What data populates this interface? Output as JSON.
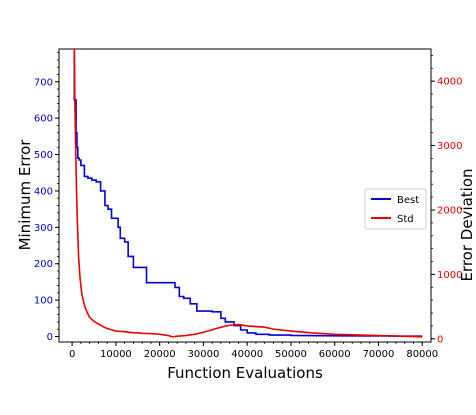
{
  "chart_data": {
    "type": "line",
    "title": "",
    "xlabel": "Function Evaluations",
    "ylabel_left": "Minimum Error",
    "ylabel_right": "Error Deviation",
    "xlim": [
      -3000,
      82000
    ],
    "ylim_left": [
      -15,
      790
    ],
    "ylim_right": [
      -50,
      4500
    ],
    "xticks": [
      0,
      10000,
      20000,
      30000,
      40000,
      50000,
      60000,
      70000,
      80000
    ],
    "xtick_labels": [
      "0",
      "10000",
      "20000",
      "30000",
      "40000",
      "50000",
      "60000",
      "70000",
      "80000"
    ],
    "yticks_left": [
      0,
      100,
      200,
      300,
      400,
      500,
      600,
      700
    ],
    "ytick_labels_left": [
      "0",
      "100",
      "200",
      "300",
      "400",
      "500",
      "600",
      "700"
    ],
    "yticks_right": [
      0,
      1000,
      2000,
      3000,
      4000
    ],
    "ytick_labels_right": [
      "0",
      "1000",
      "2000",
      "3000",
      "4000"
    ],
    "grid": false,
    "legend_position": "center-right",
    "colors": {
      "best": "#0000dd",
      "std": "#ee0000",
      "left_axis": "#0000cc",
      "right_axis": "#dd0000"
    },
    "series": [
      {
        "name": "Best",
        "axis": "left",
        "x": [
          500,
          500,
          900,
          900,
          1100,
          1100,
          1300,
          1300,
          1600,
          1600,
          2000,
          2000,
          2800,
          2800,
          3600,
          3600,
          4500,
          4500,
          5500,
          5500,
          6500,
          6500,
          7500,
          7500,
          8200,
          8200,
          9000,
          9000,
          10500,
          10500,
          11000,
          11000,
          12000,
          12000,
          12800,
          12800,
          14000,
          14000,
          17000,
          17000,
          23500,
          23500,
          24500,
          24500,
          25500,
          25500,
          27000,
          27000,
          28500,
          28500,
          32000,
          32000,
          34000,
          34000,
          35000,
          35000,
          37000,
          37000,
          38500,
          38500,
          40000,
          40000,
          42000,
          42000,
          45000,
          45000,
          50000,
          50000,
          60000,
          80000
        ],
        "y": [
          790,
          650,
          650,
          560,
          560,
          520,
          520,
          490,
          490,
          485,
          485,
          470,
          470,
          440,
          440,
          435,
          435,
          430,
          430,
          425,
          425,
          400,
          400,
          360,
          360,
          350,
          350,
          325,
          325,
          300,
          300,
          270,
          270,
          260,
          260,
          220,
          220,
          190,
          190,
          148,
          148,
          135,
          135,
          110,
          110,
          105,
          105,
          90,
          90,
          70,
          70,
          68,
          68,
          50,
          50,
          40,
          40,
          30,
          30,
          18,
          18,
          10,
          10,
          6,
          6,
          4,
          4,
          3,
          2,
          1
        ]
      },
      {
        "name": "Std",
        "axis": "right",
        "x": [
          500,
          600,
          800,
          1000,
          1200,
          1500,
          1800,
          2200,
          2600,
          3000,
          3500,
          4000,
          4500,
          5000,
          6000,
          7000,
          8000,
          9000,
          10000,
          11000,
          12000,
          13000,
          14000,
          15000,
          16000,
          18000,
          20000,
          21000,
          22000,
          23000,
          24000,
          26000,
          28000,
          30000,
          32000,
          34000,
          36000,
          38000,
          40000,
          42000,
          44000,
          46000,
          50000,
          55000,
          60000,
          65000,
          70000,
          75000,
          80000
        ],
        "y": [
          4500,
          3800,
          3000,
          2300,
          1800,
          1250,
          950,
          700,
          580,
          480,
          400,
          330,
          300,
          270,
          230,
          190,
          160,
          140,
          120,
          115,
          110,
          100,
          95,
          90,
          85,
          80,
          70,
          60,
          50,
          30,
          40,
          50,
          70,
          100,
          140,
          180,
          210,
          220,
          200,
          190,
          180,
          150,
          120,
          90,
          70,
          60,
          50,
          40,
          30
        ]
      }
    ]
  }
}
